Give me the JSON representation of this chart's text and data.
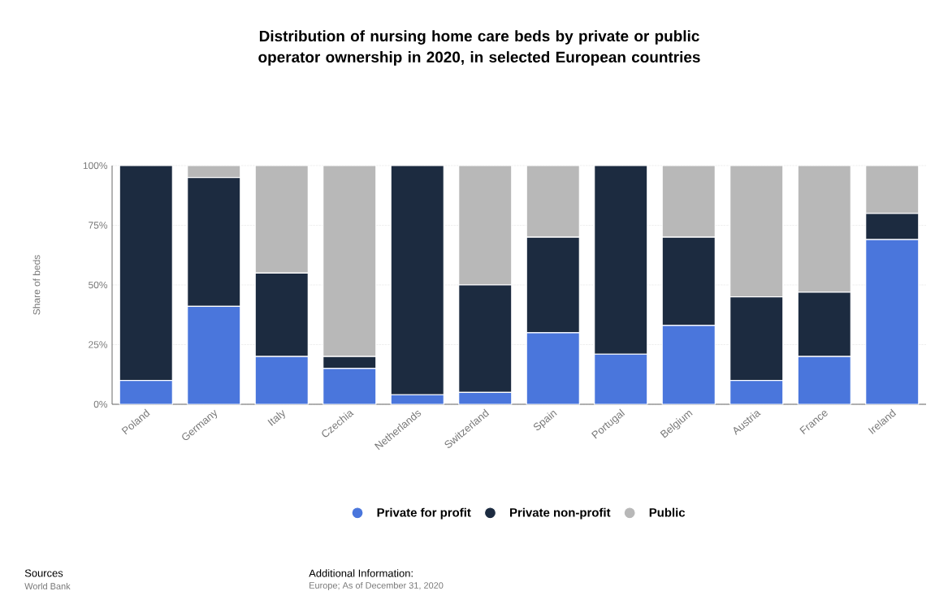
{
  "chart_data": {
    "type": "bar",
    "stacked": true,
    "title": "Distribution of nursing home care beds by private or public operator ownership in 2020, in selected European countries",
    "ylabel": "Share of beds",
    "categories": [
      "Poland",
      "Germany",
      "Italy",
      "Czechia",
      "Netherlands",
      "Switzerland",
      "Spain",
      "Portugal",
      "Belgium",
      "Austria",
      "France",
      "Ireland"
    ],
    "series": [
      {
        "name": "Private for profit",
        "color": "#4a76dc",
        "values": [
          10,
          41,
          20,
          15,
          4,
          5,
          30,
          21,
          33,
          10,
          20,
          69
        ]
      },
      {
        "name": "Private non-profit",
        "color": "#1c2b40",
        "values": [
          90,
          54,
          35,
          5,
          96,
          45,
          40,
          79,
          37,
          35,
          27,
          11
        ]
      },
      {
        "name": "Public",
        "color": "#b8b8b8",
        "values": [
          0,
          5,
          45,
          80,
          0,
          50,
          30,
          0,
          30,
          55,
          53,
          20
        ]
      }
    ],
    "ylim": [
      0,
      100
    ],
    "yticks": [
      {
        "value": 0,
        "label": "0%"
      },
      {
        "value": 25,
        "label": "25%"
      },
      {
        "value": 50,
        "label": "50%"
      },
      {
        "value": 75,
        "label": "75%"
      },
      {
        "value": 100,
        "label": "100%"
      }
    ],
    "grid": "y",
    "legend": "bottom",
    "annotations": [
      "Sources",
      "World Bank",
      "Additional Information:",
      "Europe; As of December 31, 2020"
    ]
  }
}
